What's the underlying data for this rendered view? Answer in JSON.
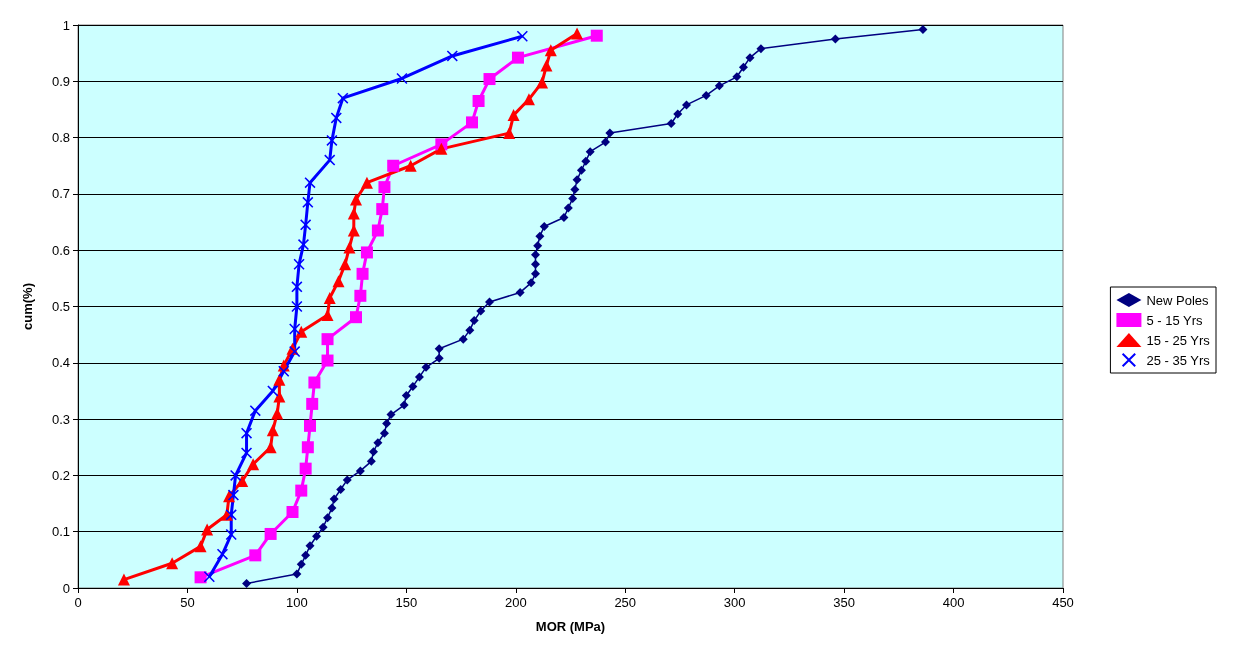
{
  "chart_data": {
    "type": "line",
    "xlabel": "MOR (MPa)",
    "ylabel": "cum(%)",
    "xlim": [
      0,
      450
    ],
    "xticks": [
      0,
      50,
      100,
      150,
      200,
      250,
      300,
      350,
      400,
      450
    ],
    "ylim": [
      0,
      1
    ],
    "yticks": [
      0,
      0.1,
      0.2,
      0.3,
      0.4,
      0.5,
      0.6,
      0.7,
      0.8,
      0.9,
      1
    ],
    "grid": "y",
    "legend": "right",
    "line_style": "solid",
    "series": [
      {
        "name": "New Poles",
        "color": "#000080",
        "marker": "diamond",
        "x": [
          77,
          100,
          102,
          104,
          106,
          109,
          112,
          114,
          116,
          117,
          120,
          123,
          129,
          134,
          135,
          137,
          140,
          141,
          143,
          149,
          150,
          153,
          156,
          159,
          165,
          165,
          176,
          179,
          181,
          184,
          188,
          202,
          207,
          209,
          209,
          209,
          210,
          211,
          213,
          222,
          224,
          226,
          227,
          228,
          230,
          232,
          234,
          241,
          243,
          271,
          274,
          278,
          287,
          293,
          301,
          304,
          307,
          312,
          346,
          386
        ],
        "values": [
          0.008,
          0.025,
          0.042,
          0.058,
          0.075,
          0.092,
          0.108,
          0.125,
          0.142,
          0.158,
          0.175,
          0.192,
          0.208,
          0.225,
          0.242,
          0.258,
          0.275,
          0.292,
          0.308,
          0.325,
          0.342,
          0.358,
          0.375,
          0.392,
          0.408,
          0.425,
          0.442,
          0.458,
          0.475,
          0.492,
          0.508,
          0.525,
          0.542,
          0.558,
          0.575,
          0.592,
          0.608,
          0.625,
          0.642,
          0.658,
          0.675,
          0.692,
          0.708,
          0.725,
          0.742,
          0.758,
          0.775,
          0.792,
          0.808,
          0.825,
          0.842,
          0.858,
          0.875,
          0.892,
          0.908,
          0.925,
          0.942,
          0.958,
          0.975,
          0.992
        ]
      },
      {
        "name": "5 - 15 Yrs",
        "color": "#ff00ff",
        "marker": "square",
        "x": [
          56,
          81,
          88,
          98,
          102,
          104,
          105,
          106,
          107,
          108,
          114,
          114,
          127,
          129,
          130,
          132,
          137,
          139,
          140,
          144,
          166,
          180,
          183,
          188,
          201,
          237
        ],
        "values": [
          0.019,
          0.058,
          0.096,
          0.135,
          0.173,
          0.212,
          0.25,
          0.288,
          0.327,
          0.365,
          0.404,
          0.442,
          0.481,
          0.519,
          0.558,
          0.596,
          0.635,
          0.673,
          0.712,
          0.75,
          0.788,
          0.827,
          0.865,
          0.904,
          0.942,
          0.981
        ]
      },
      {
        "name": "15 - 25 Yrs",
        "color": "#ff0000",
        "marker": "triangle",
        "x": [
          21,
          43,
          56,
          59,
          68,
          69,
          75,
          80,
          88,
          89,
          91,
          92,
          92,
          94,
          98,
          102,
          114,
          115,
          119,
          122,
          124,
          126,
          126,
          127,
          132,
          152,
          166,
          197,
          199,
          206,
          212,
          214,
          216,
          228
        ],
        "values": [
          0.015,
          0.044,
          0.074,
          0.104,
          0.13,
          0.163,
          0.19,
          0.22,
          0.25,
          0.28,
          0.31,
          0.34,
          0.37,
          0.395,
          0.425,
          0.455,
          0.485,
          0.515,
          0.545,
          0.575,
          0.605,
          0.635,
          0.665,
          0.69,
          0.72,
          0.75,
          0.78,
          0.808,
          0.84,
          0.868,
          0.898,
          0.928,
          0.955,
          0.985
        ]
      },
      {
        "name": "25 - 35 Yrs",
        "color": "#0000ff",
        "marker": "cross",
        "x": [
          60,
          66,
          70,
          70,
          71,
          72,
          77,
          77,
          81,
          89,
          94,
          99,
          99,
          100,
          100,
          101,
          103,
          104,
          105,
          106,
          115,
          116,
          118,
          121,
          148,
          171,
          203
        ],
        "values": [
          0.02,
          0.06,
          0.095,
          0.13,
          0.165,
          0.2,
          0.24,
          0.275,
          0.315,
          0.35,
          0.385,
          0.42,
          0.46,
          0.5,
          0.535,
          0.575,
          0.61,
          0.645,
          0.685,
          0.72,
          0.76,
          0.795,
          0.835,
          0.87,
          0.905,
          0.945,
          0.98
        ]
      }
    ]
  }
}
